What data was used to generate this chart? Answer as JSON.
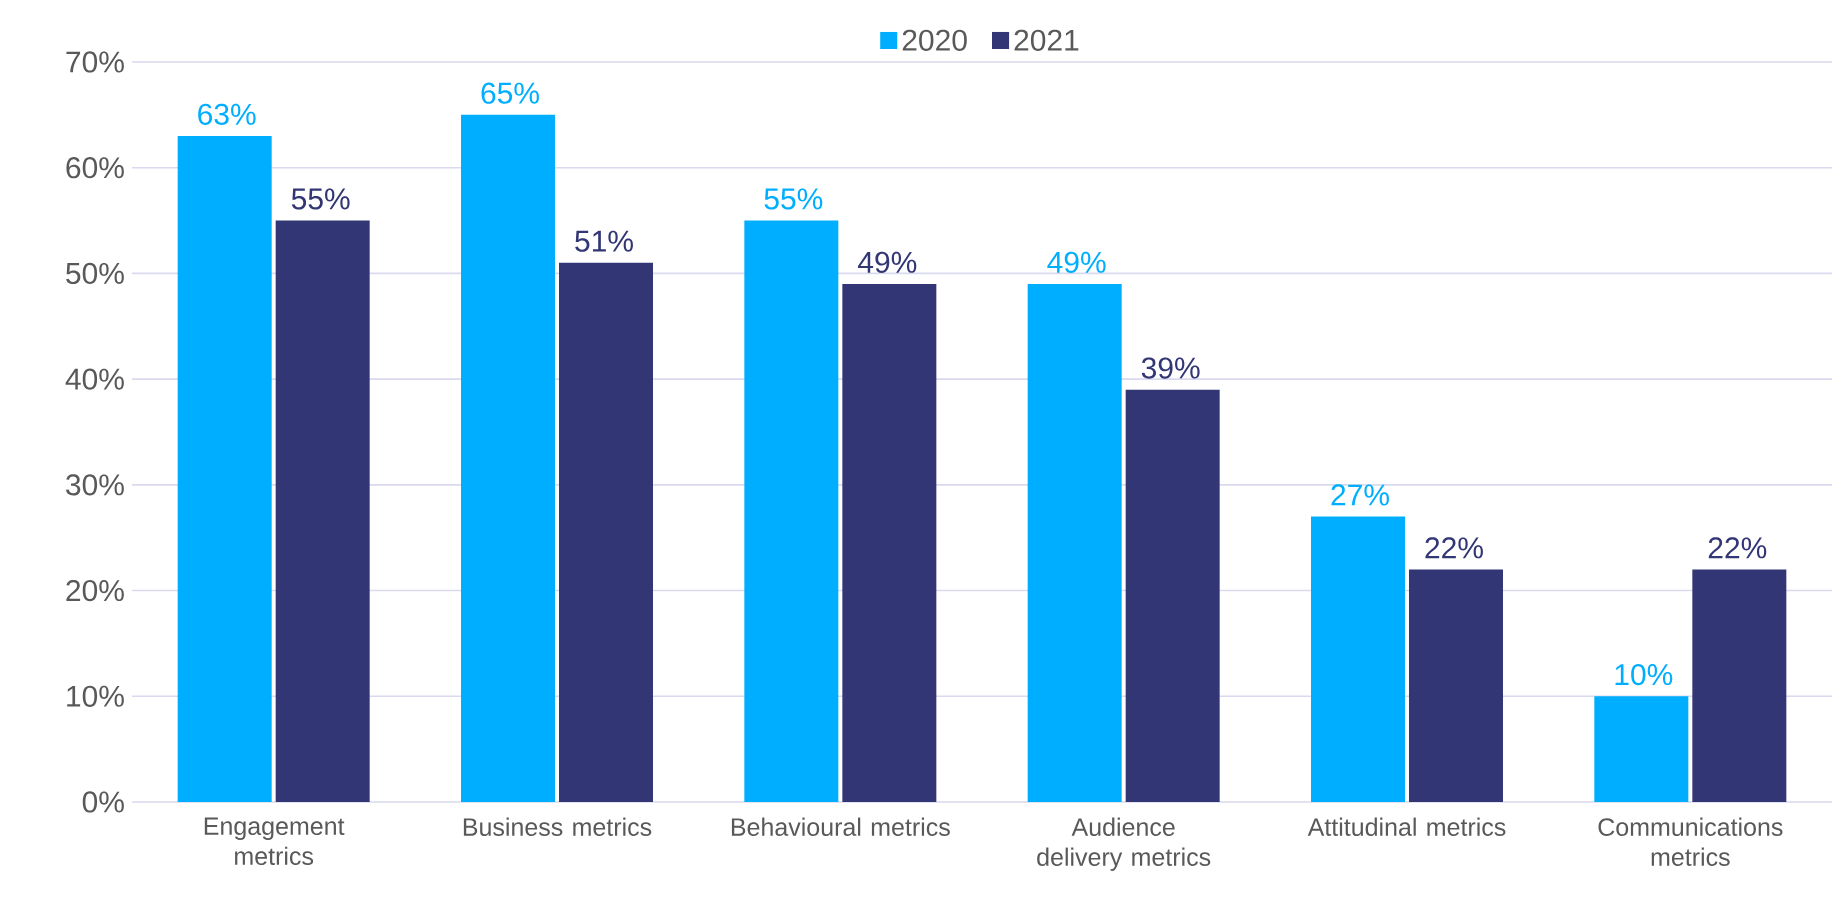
{
  "chart_data": {
    "type": "bar",
    "categories": [
      "Engagement metrics",
      "Business metrics",
      "Behavioural metrics",
      "Audience delivery metrics",
      "Attitudinal metrics",
      "Communications metrics"
    ],
    "series": [
      {
        "name": "2020",
        "color": "#00aeff",
        "values": [
          63,
          65,
          55,
          49,
          27,
          10
        ],
        "value_labels": [
          "63%",
          "65%",
          "55%",
          "49%",
          "27%",
          "10%"
        ]
      },
      {
        "name": "2021",
        "color": "#323674",
        "values": [
          55,
          51,
          49,
          39,
          22,
          22
        ],
        "value_labels": [
          "55%",
          "51%",
          "49%",
          "39%",
          "22%",
          "22%"
        ]
      }
    ],
    "ylim": [
      0,
      70
    ],
    "yticks": [
      {
        "value": 0,
        "label": "0%"
      },
      {
        "value": 10,
        "label": "10%"
      },
      {
        "value": 20,
        "label": "20%"
      },
      {
        "value": 30,
        "label": "30%"
      },
      {
        "value": 40,
        "label": "40%"
      },
      {
        "value": 50,
        "label": "50%"
      },
      {
        "value": 60,
        "label": "60%"
      },
      {
        "value": 70,
        "label": "70%"
      }
    ],
    "grid": "y",
    "legend": "top"
  }
}
